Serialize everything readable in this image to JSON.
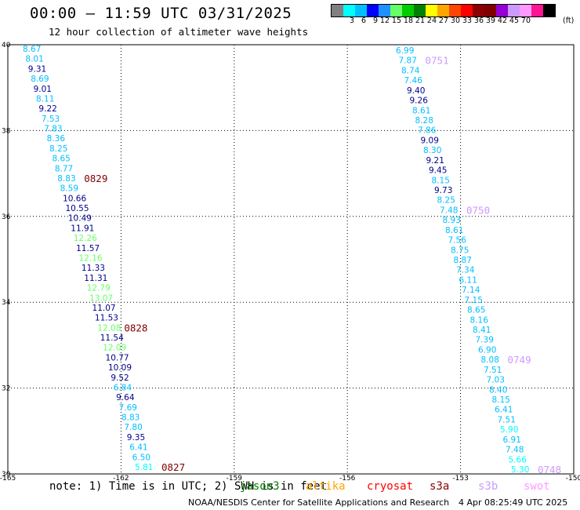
{
  "header": {
    "title": "00:00 – 11:59 UTC 03/31/2025",
    "subtitle": "12 hour collection of altimeter wave heights"
  },
  "scale": {
    "colors": [
      "#808080",
      "#00ffff",
      "#00bfff",
      "#0000ff",
      "#1e90ff",
      "#66ff66",
      "#00cc00",
      "#008000",
      "#ffff00",
      "#ffa500",
      "#ff4500",
      "#ff0000",
      "#8b0000",
      "#800000",
      "#9400d3",
      "#cc99ff",
      "#ff99ff",
      "#ff1493",
      "#000000"
    ],
    "ticks": [
      "3",
      "6",
      "9",
      "12",
      "15",
      "18",
      "21",
      "24",
      "27",
      "30",
      "33",
      "36",
      "39",
      "42",
      "45",
      "70"
    ],
    "unit": "(ft)"
  },
  "map": {
    "lon_range": [
      -165,
      -150
    ],
    "lat_range": [
      30,
      40
    ],
    "lon_ticks": [
      "-165",
      "-162",
      "-159",
      "-156",
      "-153",
      "-150"
    ],
    "lat_ticks": [
      "40",
      "38",
      "36",
      "34",
      "32",
      "30"
    ]
  },
  "tracks": [
    {
      "points": [
        {
          "v": "8.67",
          "c": "#00bfff"
        },
        {
          "v": "8.01",
          "c": "#00bfff"
        },
        {
          "v": "9.31",
          "c": "#00008b"
        },
        {
          "v": "8.69",
          "c": "#00bfff"
        },
        {
          "v": "9.01",
          "c": "#00008b"
        },
        {
          "v": "8.11",
          "c": "#00bfff"
        },
        {
          "v": "9.22",
          "c": "#00008b"
        },
        {
          "v": "7.53",
          "c": "#00bfff"
        },
        {
          "v": "7.83",
          "c": "#00bfff"
        },
        {
          "v": "8.36",
          "c": "#00bfff"
        },
        {
          "v": "8.25",
          "c": "#00bfff"
        },
        {
          "v": "8.65",
          "c": "#00bfff"
        },
        {
          "v": "8.77",
          "c": "#00bfff"
        },
        {
          "v": "8.83",
          "c": "#00bfff"
        },
        {
          "v": "8.59",
          "c": "#00bfff"
        },
        {
          "v": "10.66",
          "c": "#00008b"
        },
        {
          "v": "10.55",
          "c": "#00008b"
        },
        {
          "v": "10.49",
          "c": "#00008b"
        },
        {
          "v": "11.91",
          "c": "#00008b"
        },
        {
          "v": "12.26",
          "c": "#66ff66"
        },
        {
          "v": "11.57",
          "c": "#00008b"
        },
        {
          "v": "12.16",
          "c": "#66ff66"
        },
        {
          "v": "11.33",
          "c": "#00008b"
        },
        {
          "v": "11.31",
          "c": "#00008b"
        },
        {
          "v": "12.79",
          "c": "#66ff66"
        },
        {
          "v": "13.07",
          "c": "#66ff66"
        },
        {
          "v": "11.07",
          "c": "#00008b"
        },
        {
          "v": "11.53",
          "c": "#00008b"
        },
        {
          "v": "12.08",
          "c": "#66ff66"
        },
        {
          "v": "11.54",
          "c": "#00008b"
        },
        {
          "v": "12.09",
          "c": "#66ff66"
        },
        {
          "v": "10.77",
          "c": "#00008b"
        },
        {
          "v": "10.09",
          "c": "#00008b"
        },
        {
          "v": "9.52",
          "c": "#00008b"
        },
        {
          "v": "6.84",
          "c": "#00bfff"
        },
        {
          "v": "9.64",
          "c": "#00008b"
        },
        {
          "v": "7.69",
          "c": "#00bfff"
        },
        {
          "v": "8.83",
          "c": "#00bfff"
        },
        {
          "v": "7.80",
          "c": "#00bfff"
        },
        {
          "v": "9.35",
          "c": "#00008b"
        },
        {
          "v": "6.41",
          "c": "#00bfff"
        },
        {
          "v": "6.50",
          "c": "#00bfff"
        },
        {
          "v": "5.81",
          "c": "#00ffff"
        }
      ],
      "times": [
        {
          "label": "0829",
          "color": "#800000",
          "idx": 13
        },
        {
          "label": "0828",
          "color": "#800000",
          "idx": 28
        },
        {
          "label": "0827",
          "color": "#800000",
          "idx": 42
        }
      ]
    },
    {
      "points": [
        {
          "v": "6.99",
          "c": "#00bfff"
        },
        {
          "v": "7.87",
          "c": "#00bfff"
        },
        {
          "v": "8.74",
          "c": "#00bfff"
        },
        {
          "v": "7.46",
          "c": "#00bfff"
        },
        {
          "v": "9.40",
          "c": "#00008b"
        },
        {
          "v": "9.26",
          "c": "#00008b"
        },
        {
          "v": "8.61",
          "c": "#00bfff"
        },
        {
          "v": "8.28",
          "c": "#00bfff"
        },
        {
          "v": "7.86",
          "c": "#00bfff"
        },
        {
          "v": "9.09",
          "c": "#00008b"
        },
        {
          "v": "8.30",
          "c": "#00bfff"
        },
        {
          "v": "9.21",
          "c": "#00008b"
        },
        {
          "v": "9.45",
          "c": "#00008b"
        },
        {
          "v": "8.15",
          "c": "#00bfff"
        },
        {
          "v": "9.73",
          "c": "#00008b"
        },
        {
          "v": "8.25",
          "c": "#00bfff"
        },
        {
          "v": "7.48",
          "c": "#00bfff"
        },
        {
          "v": "8.93",
          "c": "#00bfff"
        },
        {
          "v": "8.61",
          "c": "#00bfff"
        },
        {
          "v": "7.56",
          "c": "#00bfff"
        },
        {
          "v": "8.75",
          "c": "#00bfff"
        },
        {
          "v": "8.87",
          "c": "#00bfff"
        },
        {
          "v": "7.34",
          "c": "#00bfff"
        },
        {
          "v": "6.11",
          "c": "#00bfff"
        },
        {
          "v": "7.14",
          "c": "#00bfff"
        },
        {
          "v": "7.15",
          "c": "#00bfff"
        },
        {
          "v": "8.65",
          "c": "#00bfff"
        },
        {
          "v": "8.16",
          "c": "#00bfff"
        },
        {
          "v": "8.41",
          "c": "#00bfff"
        },
        {
          "v": "7.39",
          "c": "#00bfff"
        },
        {
          "v": "6.90",
          "c": "#00bfff"
        },
        {
          "v": "8.08",
          "c": "#00bfff"
        },
        {
          "v": "7.51",
          "c": "#00bfff"
        },
        {
          "v": "7.03",
          "c": "#00bfff"
        },
        {
          "v": "8.40",
          "c": "#00bfff"
        },
        {
          "v": "8.15",
          "c": "#00bfff"
        },
        {
          "v": "6.41",
          "c": "#00bfff"
        },
        {
          "v": "7.51",
          "c": "#00bfff"
        },
        {
          "v": "5.90",
          "c": "#00ffff"
        },
        {
          "v": "6.91",
          "c": "#00bfff"
        },
        {
          "v": "7.48",
          "c": "#00bfff"
        },
        {
          "v": "5.66",
          "c": "#00ffff"
        },
        {
          "v": "5.30",
          "c": "#00ffff"
        }
      ],
      "times": [
        {
          "label": "0751",
          "color": "#cc99ff",
          "idx": 1
        },
        {
          "label": "0750",
          "color": "#cc99ff",
          "idx": 16
        },
        {
          "label": "0749",
          "color": "#cc99ff",
          "idx": 31
        },
        {
          "label": "0748",
          "color": "#cc99ff",
          "idx": 42
        }
      ]
    }
  ],
  "footer": {
    "note": "note: 1) Time is in UTC; 2) SWH is in feet",
    "satellites": [
      {
        "name": "jason3",
        "color": "#008000"
      },
      {
        "name": "altika",
        "color": "#ffa500"
      },
      {
        "name": "cryosat",
        "color": "#ff0000"
      },
      {
        "name": "s3a",
        "color": "#8b0000"
      },
      {
        "name": "s3b",
        "color": "#cc99ff"
      },
      {
        "name": "swot",
        "color": "#ff99ff"
      }
    ],
    "credit": "NOAA/NESDIS Center for Satellite Applications and Research",
    "stamp": "4 Apr 08:25:49 UTC 2025"
  }
}
